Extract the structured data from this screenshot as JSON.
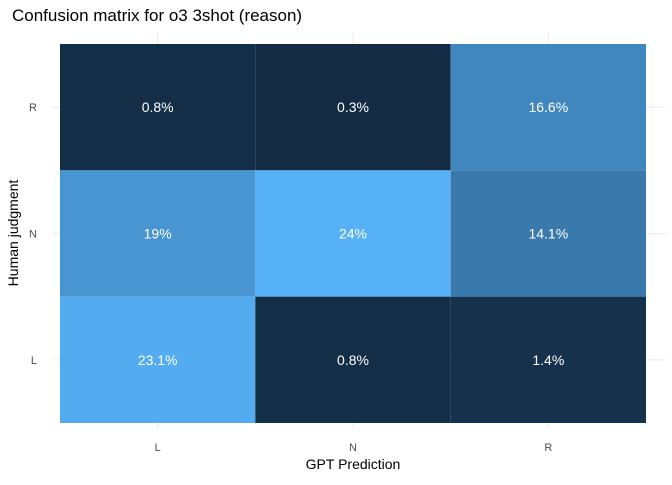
{
  "chart_data": {
    "type": "heatmap",
    "title": "Confusion matrix for o3 3shot (reason)",
    "xlabel": "GPT Prediction",
    "ylabel": "Human judgment",
    "x_categories": [
      "L",
      "N",
      "R"
    ],
    "y_categories": [
      "L",
      "N",
      "R"
    ],
    "cells": [
      {
        "x": "L",
        "y": "R",
        "value": 0.8,
        "label": "0.8%"
      },
      {
        "x": "N",
        "y": "R",
        "value": 0.3,
        "label": "0.3%"
      },
      {
        "x": "R",
        "y": "R",
        "value": 16.6,
        "label": "16.6%"
      },
      {
        "x": "L",
        "y": "N",
        "value": 19,
        "label": "19%"
      },
      {
        "x": "N",
        "y": "N",
        "value": 24,
        "label": "24%"
      },
      {
        "x": "R",
        "y": "N",
        "value": 14.1,
        "label": "14.1%"
      },
      {
        "x": "L",
        "y": "L",
        "value": 23.1,
        "label": "23.1%"
      },
      {
        "x": "N",
        "y": "L",
        "value": 0.8,
        "label": "0.8%"
      },
      {
        "x": "R",
        "y": "L",
        "value": 1.4,
        "label": "1.4%"
      }
    ],
    "color_low": "#132B43",
    "color_high": "#56B1F7",
    "cell_label_color": "#ffffff",
    "grid": true
  }
}
